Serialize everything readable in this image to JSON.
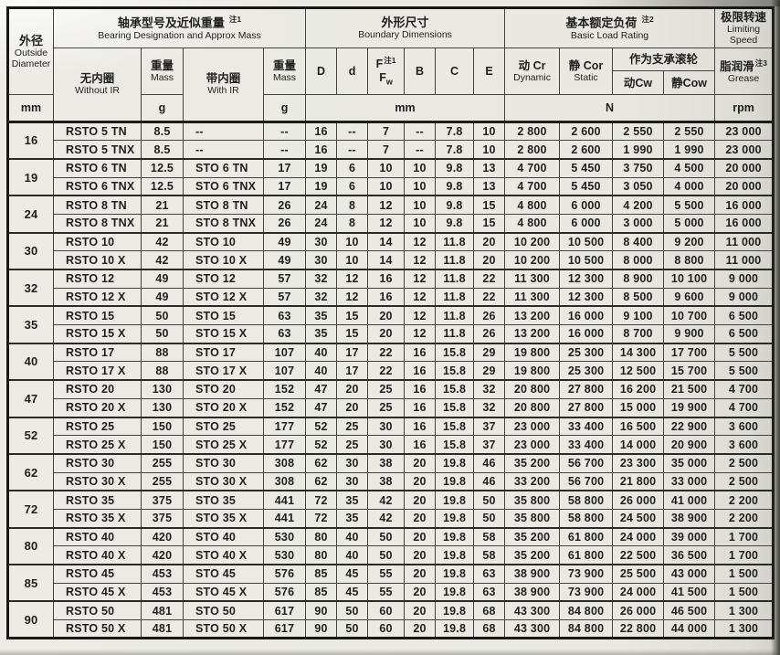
{
  "table": {
    "header": {
      "outside_diameter": {
        "zh": "外径",
        "en_line1": "Outside",
        "en_line2": "Diameter",
        "unit": "mm"
      },
      "grp_designation": {
        "zh": "轴承型号及近似重量",
        "note": "注1",
        "en": "Bearing Designation and Approx Mass"
      },
      "without_ir": {
        "zh": "无内圈",
        "en": "Without IR"
      },
      "mass_without": {
        "zh": "重量",
        "en": "Mass",
        "unit": "g"
      },
      "with_ir": {
        "zh": "带内圈",
        "en": "With IR"
      },
      "mass_with": {
        "zh": "重量",
        "en": "Mass",
        "unit": "g"
      },
      "grp_dimensions": {
        "zh": "外形尺寸",
        "en": "Boundary Dimensions",
        "unit": "mm"
      },
      "col_D": "D",
      "col_d": "d",
      "col_F": {
        "line1": "F",
        "note": "注1",
        "line2_base": "F",
        "line2_sub": "w"
      },
      "col_B": "B",
      "col_C": "C",
      "col_E": "E",
      "grp_load": {
        "zh": "基本额定负荷",
        "note": "注2",
        "en": "Basic Load Rating",
        "unit": "N"
      },
      "dynamic": {
        "zh": "动  Cr",
        "en": "Dynamic"
      },
      "static": {
        "zh": "静  Cor",
        "en": "Static"
      },
      "grp_roller": {
        "zh": "作为支承滚轮"
      },
      "roller_cw": "动Cw",
      "roller_cow": "静Cow",
      "grp_speed": {
        "zh": "极限转速",
        "en_line1": "Limiting",
        "en_line2": "Speed"
      },
      "grease": {
        "zh": "脂润滑",
        "note": "注3",
        "en": "Grease",
        "unit": "rpm"
      }
    },
    "groups": [
      {
        "dia": "16",
        "rows": [
          [
            "RSTO 5 TN",
            "8.5",
            "--",
            "--",
            "16",
            "--",
            "7",
            "--",
            "7.8",
            "10",
            "2 800",
            "2 600",
            "2 550",
            "2 550",
            "23 000"
          ],
          [
            "RSTO 5 TNX",
            "8.5",
            "--",
            "--",
            "16",
            "--",
            "7",
            "--",
            "7.8",
            "10",
            "2 800",
            "2 600",
            "1 990",
            "1 990",
            "23 000"
          ]
        ]
      },
      {
        "dia": "19",
        "rows": [
          [
            "RSTO 6 TN",
            "12.5",
            "STO 6 TN",
            "17",
            "19",
            "6",
            "10",
            "10",
            "9.8",
            "13",
            "4 700",
            "5 450",
            "3 750",
            "4 500",
            "20 000"
          ],
          [
            "RSTO 6 TNX",
            "12.5",
            "STO 6 TNX",
            "17",
            "19",
            "6",
            "10",
            "10",
            "9.8",
            "13",
            "4 700",
            "5 450",
            "3 050",
            "4 000",
            "20 000"
          ]
        ]
      },
      {
        "dia": "24",
        "rows": [
          [
            "RSTO 8 TN",
            "21",
            "STO 8 TN",
            "26",
            "24",
            "8",
            "12",
            "10",
            "9.8",
            "15",
            "4 800",
            "6 000",
            "4 200",
            "5 500",
            "16 000"
          ],
          [
            "RSTO 8 TNX",
            "21",
            "STO 8 TNX",
            "26",
            "24",
            "8",
            "12",
            "10",
            "9.8",
            "15",
            "4 800",
            "6 000",
            "3 000",
            "5 000",
            "16 000"
          ]
        ]
      },
      {
        "dia": "30",
        "rows": [
          [
            "RSTO 10",
            "42",
            "STO 10",
            "49",
            "30",
            "10",
            "14",
            "12",
            "11.8",
            "20",
            "10 200",
            "10 500",
            "8 400",
            "9 200",
            "11 000"
          ],
          [
            "RSTO 10 X",
            "42",
            "STO 10 X",
            "49",
            "30",
            "10",
            "14",
            "12",
            "11.8",
            "20",
            "10 200",
            "10 500",
            "8 000",
            "8 800",
            "11 000"
          ]
        ]
      },
      {
        "dia": "32",
        "rows": [
          [
            "RSTO 12",
            "49",
            "STO 12",
            "57",
            "32",
            "12",
            "16",
            "12",
            "11.8",
            "22",
            "11 300",
            "12 300",
            "8 900",
            "10 100",
            "9 000"
          ],
          [
            "RSTO 12 X",
            "49",
            "STO 12 X",
            "57",
            "32",
            "12",
            "16",
            "12",
            "11.8",
            "22",
            "11 300",
            "12 300",
            "8 500",
            "9 600",
            "9 000"
          ]
        ]
      },
      {
        "dia": "35",
        "rows": [
          [
            "RSTO 15",
            "50",
            "STO 15",
            "63",
            "35",
            "15",
            "20",
            "12",
            "11.8",
            "26",
            "13 200",
            "16 000",
            "9 100",
            "10 700",
            "6 500"
          ],
          [
            "RSTO 15 X",
            "50",
            "STO 15 X",
            "63",
            "35",
            "15",
            "20",
            "12",
            "11.8",
            "26",
            "13 200",
            "16 000",
            "8 700",
            "9 900",
            "6 500"
          ]
        ]
      },
      {
        "dia": "40",
        "rows": [
          [
            "RSTO 17",
            "88",
            "STO 17",
            "107",
            "40",
            "17",
            "22",
            "16",
            "15.8",
            "29",
            "19 800",
            "25 300",
            "14 300",
            "17 700",
            "5 500"
          ],
          [
            "RSTO 17 X",
            "88",
            "STO 17 X",
            "107",
            "40",
            "17",
            "22",
            "16",
            "15.8",
            "29",
            "19 800",
            "25 300",
            "12 500",
            "15 700",
            "5 500"
          ]
        ]
      },
      {
        "dia": "47",
        "rows": [
          [
            "RSTO 20",
            "130",
            "STO 20",
            "152",
            "47",
            "20",
            "25",
            "16",
            "15.8",
            "32",
            "20 800",
            "27 800",
            "16 200",
            "21 500",
            "4 700"
          ],
          [
            "RSTO 20 X",
            "130",
            "STO 20 X",
            "152",
            "47",
            "20",
            "25",
            "16",
            "15.8",
            "32",
            "20 800",
            "27 800",
            "15 000",
            "19 900",
            "4 700"
          ]
        ]
      },
      {
        "dia": "52",
        "rows": [
          [
            "RSTO 25",
            "150",
            "STO 25",
            "177",
            "52",
            "25",
            "30",
            "16",
            "15.8",
            "37",
            "23 000",
            "33 400",
            "16 500",
            "22 900",
            "3 600"
          ],
          [
            "RSTO 25 X",
            "150",
            "STO 25 X",
            "177",
            "52",
            "25",
            "30",
            "16",
            "15.8",
            "37",
            "23 000",
            "33 400",
            "14 000",
            "20 900",
            "3 600"
          ]
        ]
      },
      {
        "dia": "62",
        "rows": [
          [
            "RSTO 30",
            "255",
            "STO 30",
            "308",
            "62",
            "30",
            "38",
            "20",
            "19.8",
            "46",
            "35 200",
            "56 700",
            "23 300",
            "35 000",
            "2 500"
          ],
          [
            "RSTO 30 X",
            "255",
            "STO 30 X",
            "308",
            "62",
            "30",
            "38",
            "20",
            "19.8",
            "46",
            "33 200",
            "56 700",
            "21 800",
            "33 000",
            "2 500"
          ]
        ]
      },
      {
        "dia": "72",
        "rows": [
          [
            "RSTO 35",
            "375",
            "STO 35",
            "441",
            "72",
            "35",
            "42",
            "20",
            "19.8",
            "50",
            "35 800",
            "58 800",
            "26 000",
            "41 000",
            "2 200"
          ],
          [
            "RSTO 35 X",
            "375",
            "STO 35 X",
            "441",
            "72",
            "35",
            "42",
            "20",
            "19.8",
            "50",
            "35 800",
            "58 800",
            "24 500",
            "38 900",
            "2 200"
          ]
        ]
      },
      {
        "dia": "80",
        "rows": [
          [
            "RSTO 40",
            "420",
            "STO 40",
            "530",
            "80",
            "40",
            "50",
            "20",
            "19.8",
            "58",
            "35 200",
            "61 800",
            "24 000",
            "39 000",
            "1 700"
          ],
          [
            "RSTO 40 X",
            "420",
            "STO 40 X",
            "530",
            "80",
            "40",
            "50",
            "20",
            "19.8",
            "58",
            "35 200",
            "61 800",
            "22 500",
            "36 500",
            "1 700"
          ]
        ]
      },
      {
        "dia": "85",
        "rows": [
          [
            "RSTO 45",
            "453",
            "STO 45",
            "576",
            "85",
            "45",
            "55",
            "20",
            "19.8",
            "63",
            "38 900",
            "73 900",
            "25 500",
            "43 000",
            "1 500"
          ],
          [
            "RSTO 45 X",
            "453",
            "STO 45 X",
            "576",
            "85",
            "45",
            "55",
            "20",
            "19.8",
            "63",
            "38 900",
            "73 900",
            "24 000",
            "41 500",
            "1 500"
          ]
        ]
      },
      {
        "dia": "90",
        "rows": [
          [
            "RSTO 50",
            "481",
            "STO 50",
            "617",
            "90",
            "50",
            "60",
            "20",
            "19.8",
            "68",
            "43 300",
            "84 800",
            "26 000",
            "46 500",
            "1 300"
          ],
          [
            "RSTO 50 X",
            "481",
            "STO 50 X",
            "617",
            "90",
            "50",
            "60",
            "20",
            "19.8",
            "68",
            "43 300",
            "84 800",
            "22 800",
            "44 000",
            "1 300"
          ]
        ]
      }
    ]
  }
}
